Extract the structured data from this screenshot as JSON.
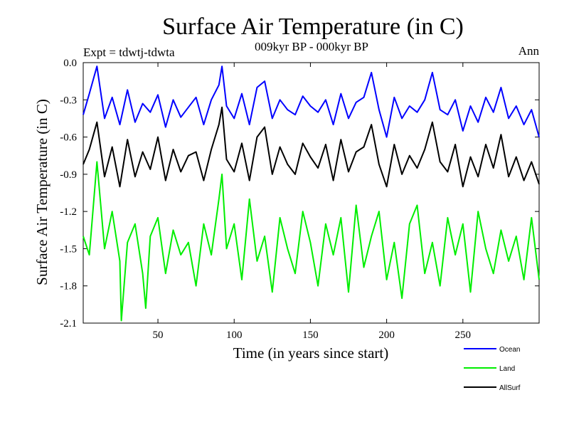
{
  "chart_data": {
    "type": "line",
    "title": "Surface Air Temperature (in C)",
    "subtitle": "009kyr BP - 000kyr BP",
    "experiment": "Expt = tdwtj-tdwta",
    "season": "Ann",
    "xlabel": "Time (in years since start)",
    "ylabel": "Surface Air Temperature (in C)",
    "xlim": [
      1,
      300
    ],
    "ylim": [
      -2.1,
      0.0
    ],
    "xticks": [
      50,
      100,
      150,
      200,
      250
    ],
    "xtick_labels": [
      "50",
      "100",
      "150",
      "200",
      "250"
    ],
    "yticks": [
      0.0,
      -0.3,
      -0.6,
      -0.9,
      -1.2,
      -1.5,
      -1.8,
      -2.1
    ],
    "ytick_labels": [
      "0.0",
      "-0.3",
      "-0.6",
      "-0.9",
      "-1.2",
      "-1.5",
      "-1.8",
      "-2.1"
    ],
    "legend_position": "bottom-right",
    "series": [
      {
        "name": "Ocean",
        "color": "#0000ff",
        "x": [
          1,
          5,
          10,
          15,
          20,
          25,
          30,
          35,
          40,
          45,
          50,
          55,
          60,
          65,
          70,
          75,
          80,
          85,
          90,
          92,
          95,
          100,
          105,
          110,
          115,
          120,
          125,
          130,
          135,
          140,
          145,
          150,
          155,
          160,
          165,
          170,
          175,
          180,
          185,
          190,
          195,
          200,
          205,
          210,
          215,
          220,
          225,
          230,
          235,
          240,
          245,
          250,
          255,
          260,
          265,
          270,
          275,
          280,
          285,
          290,
          295,
          300
        ],
        "values": [
          -0.42,
          -0.25,
          -0.03,
          -0.45,
          -0.28,
          -0.5,
          -0.22,
          -0.48,
          -0.33,
          -0.4,
          -0.26,
          -0.52,
          -0.3,
          -0.44,
          -0.36,
          -0.28,
          -0.5,
          -0.3,
          -0.18,
          -0.03,
          -0.35,
          -0.45,
          -0.25,
          -0.5,
          -0.2,
          -0.15,
          -0.45,
          -0.3,
          -0.38,
          -0.42,
          -0.27,
          -0.35,
          -0.4,
          -0.3,
          -0.5,
          -0.25,
          -0.45,
          -0.32,
          -0.28,
          -0.08,
          -0.38,
          -0.6,
          -0.28,
          -0.45,
          -0.35,
          -0.4,
          -0.3,
          -0.08,
          -0.38,
          -0.42,
          -0.3,
          -0.55,
          -0.35,
          -0.48,
          -0.28,
          -0.4,
          -0.2,
          -0.45,
          -0.35,
          -0.5,
          -0.38,
          -0.6
        ]
      },
      {
        "name": "Land",
        "color": "#00ee00",
        "x": [
          1,
          5,
          10,
          15,
          20,
          25,
          26,
          30,
          35,
          40,
          42,
          45,
          50,
          55,
          60,
          65,
          70,
          75,
          80,
          85,
          90,
          92,
          95,
          100,
          105,
          110,
          115,
          120,
          125,
          130,
          135,
          140,
          145,
          150,
          155,
          160,
          165,
          170,
          175,
          180,
          185,
          190,
          195,
          200,
          205,
          210,
          215,
          220,
          225,
          230,
          235,
          240,
          245,
          250,
          255,
          260,
          265,
          270,
          275,
          280,
          285,
          290,
          295,
          300
        ],
        "values": [
          -1.4,
          -1.55,
          -0.8,
          -1.5,
          -1.2,
          -1.6,
          -2.08,
          -1.45,
          -1.3,
          -1.7,
          -1.98,
          -1.4,
          -1.25,
          -1.7,
          -1.35,
          -1.55,
          -1.45,
          -1.8,
          -1.3,
          -1.55,
          -1.1,
          -0.9,
          -1.5,
          -1.3,
          -1.75,
          -1.1,
          -1.6,
          -1.4,
          -1.85,
          -1.25,
          -1.5,
          -1.7,
          -1.2,
          -1.45,
          -1.8,
          -1.3,
          -1.55,
          -1.25,
          -1.85,
          -1.15,
          -1.65,
          -1.4,
          -1.2,
          -1.75,
          -1.45,
          -1.9,
          -1.3,
          -1.15,
          -1.7,
          -1.45,
          -1.8,
          -1.25,
          -1.55,
          -1.3,
          -1.85,
          -1.2,
          -1.5,
          -1.7,
          -1.35,
          -1.6,
          -1.4,
          -1.75,
          -1.25,
          -1.75
        ]
      },
      {
        "name": "AllSurf",
        "color": "#000000",
        "x": [
          1,
          5,
          10,
          15,
          20,
          25,
          30,
          35,
          40,
          45,
          50,
          55,
          60,
          65,
          70,
          75,
          80,
          85,
          90,
          92,
          95,
          100,
          105,
          110,
          115,
          120,
          125,
          130,
          135,
          140,
          145,
          150,
          155,
          160,
          165,
          170,
          175,
          180,
          185,
          190,
          195,
          200,
          205,
          210,
          215,
          220,
          225,
          230,
          235,
          240,
          245,
          250,
          255,
          260,
          265,
          270,
          275,
          280,
          285,
          290,
          295,
          300
        ],
        "values": [
          -0.82,
          -0.7,
          -0.48,
          -0.92,
          -0.68,
          -1.0,
          -0.62,
          -0.92,
          -0.72,
          -0.86,
          -0.6,
          -0.95,
          -0.7,
          -0.88,
          -0.75,
          -0.72,
          -0.95,
          -0.7,
          -0.5,
          -0.36,
          -0.78,
          -0.88,
          -0.65,
          -0.95,
          -0.6,
          -0.52,
          -0.9,
          -0.68,
          -0.82,
          -0.9,
          -0.65,
          -0.76,
          -0.85,
          -0.66,
          -0.95,
          -0.62,
          -0.88,
          -0.72,
          -0.68,
          -0.5,
          -0.82,
          -1.0,
          -0.66,
          -0.9,
          -0.75,
          -0.85,
          -0.7,
          -0.48,
          -0.8,
          -0.88,
          -0.66,
          -1.0,
          -0.76,
          -0.92,
          -0.66,
          -0.85,
          -0.58,
          -0.92,
          -0.76,
          -0.95,
          -0.8,
          -0.98
        ]
      }
    ]
  }
}
